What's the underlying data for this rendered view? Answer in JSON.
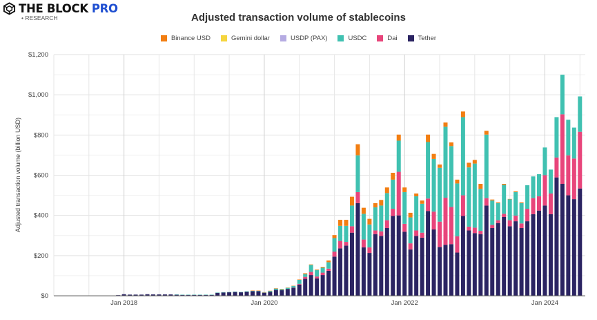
{
  "logo": {
    "main": "THE BLOCK",
    "pro": "PRO",
    "sub": "• RESEARCH"
  },
  "chart_data": {
    "type": "bar",
    "stacked": true,
    "title": "Adjusted transaction volume of stablecoins",
    "xlabel": "",
    "ylabel": "Adjusted transaction volume (billion USD)",
    "ylim": [
      0,
      1200
    ],
    "yticks": [
      0,
      200,
      400,
      600,
      800,
      1000,
      1200
    ],
    "ytick_labels": [
      "$0",
      "$200",
      "$400",
      "$600",
      "$800",
      "$1,000",
      "$1,200"
    ],
    "xtick_labels": [
      {
        "label": "Jan 2018",
        "month": "2018-01"
      },
      {
        "label": "Jan 2020",
        "month": "2020-01"
      },
      {
        "label": "Jan 2022",
        "month": "2022-01"
      },
      {
        "label": "Jan 2024",
        "month": "2024-01"
      }
    ],
    "grid": true,
    "legend_position": "top",
    "first_month": "2017-02",
    "last_month": "2024-07",
    "series": [
      {
        "name": "Tether",
        "color": "#2b2462",
        "values": [
          0.5,
          0.5,
          0.5,
          0.5,
          0.5,
          0.5,
          0.5,
          1,
          1,
          1,
          3,
          8,
          6,
          6,
          6,
          8,
          7,
          7,
          7,
          7,
          6,
          5,
          5,
          5,
          5,
          5,
          5,
          15,
          17,
          18,
          20,
          18,
          21,
          23,
          23,
          15,
          20,
          30,
          28,
          34,
          40,
          56,
          85,
          103,
          87,
          103,
          124,
          195,
          236,
          250,
          314,
          461,
          241,
          213,
          307,
          298,
          337,
          397,
          400,
          319,
          231,
          298,
          289,
          422,
          330,
          243,
          254,
          257,
          215,
          397,
          325,
          312,
          307,
          449,
          337,
          362,
          392,
          346,
          371,
          337,
          371,
          406,
          424,
          449,
          406,
          589,
          557,
          500,
          481,
          534
        ]
      },
      {
        "name": "Dai",
        "color": "#e8457b",
        "values": [
          0,
          0,
          0,
          0,
          0,
          0,
          0,
          0,
          0,
          0,
          0,
          0,
          0,
          0,
          0,
          0,
          0,
          0,
          0,
          0,
          0,
          0,
          0,
          0,
          0,
          0,
          0,
          0,
          0,
          0,
          0,
          0,
          0,
          0,
          0,
          0,
          0,
          0,
          0,
          0,
          1,
          3,
          9,
          16,
          9,
          12,
          11,
          25,
          37,
          18,
          32,
          55,
          39,
          28,
          18,
          23,
          39,
          36,
          217,
          39,
          30,
          27,
          25,
          62,
          89,
          126,
          234,
          185,
          81,
          103,
          19,
          27,
          16,
          37,
          16,
          14,
          16,
          30,
          28,
          23,
          62,
          80,
          71,
          151,
          103,
          99,
          346,
          199,
          202,
          282
        ]
      },
      {
        "name": "USDC",
        "color": "#40c1b1",
        "values": [
          0,
          0,
          0,
          0,
          0,
          0,
          0,
          0,
          0,
          0,
          0,
          0,
          0,
          0,
          0,
          0,
          0,
          0,
          0,
          0,
          0.5,
          0.5,
          0.5,
          0.5,
          0.5,
          0.5,
          0.5,
          1,
          1,
          1,
          1,
          1,
          1,
          2,
          2,
          2,
          4,
          6,
          5,
          6,
          8,
          20,
          14,
          35,
          32,
          25,
          32,
          67,
          75,
          80,
          103,
          183,
          128,
          114,
          115,
          128,
          135,
          145,
          155,
          158,
          129,
          170,
          144,
          281,
          262,
          268,
          353,
          303,
          263,
          389,
          295,
          319,
          209,
          316,
          121,
          85,
          144,
          105,
          117,
          101,
          117,
          108,
          110,
          138,
          119,
          201,
          197,
          177,
          154,
          176
        ]
      },
      {
        "name": "USDP (PAX)",
        "color": "#b5abe2",
        "values": [
          0,
          0,
          0,
          0,
          0,
          0,
          0,
          0,
          0,
          0,
          0,
          0,
          0,
          0,
          0,
          0,
          0,
          0,
          0,
          0,
          0,
          0,
          0,
          0,
          0,
          0,
          0,
          0,
          0,
          0,
          0,
          0,
          0,
          0,
          0,
          0,
          0,
          0,
          0,
          0,
          0,
          0,
          0,
          0,
          0,
          0,
          0,
          0,
          0,
          0,
          0,
          0,
          0,
          0,
          0,
          0,
          0,
          0,
          0,
          0,
          0,
          0,
          0,
          0,
          0,
          0,
          0,
          0,
          0,
          0,
          0,
          0,
          0,
          0,
          0,
          0,
          0,
          0,
          0,
          0,
          0,
          0,
          0,
          0,
          0,
          0,
          0,
          0,
          0,
          0
        ]
      },
      {
        "name": "Gemini dollar",
        "color": "#f5d53f",
        "values": [
          0,
          0,
          0,
          0,
          0,
          0,
          0,
          0,
          0,
          0,
          0,
          0,
          0,
          0,
          0,
          0,
          0,
          0,
          0,
          0,
          0,
          0,
          0,
          0,
          0,
          0,
          0,
          0,
          0,
          0,
          0,
          0,
          0,
          0,
          0,
          0,
          0,
          0,
          0,
          0,
          0,
          0,
          0,
          0,
          0,
          0,
          0,
          0,
          0,
          0,
          0,
          0,
          0,
          0,
          0,
          0,
          0,
          0,
          0,
          0,
          0,
          0,
          0,
          0,
          0,
          0,
          0,
          0,
          0,
          0,
          0,
          0,
          0,
          0,
          0,
          0,
          0,
          0,
          0,
          0,
          0,
          0,
          0,
          0,
          0,
          0,
          0,
          0,
          0,
          0
        ]
      },
      {
        "name": "Binance USD",
        "color": "#f27e12",
        "values": [
          0,
          0,
          0,
          0,
          0,
          0,
          0,
          0,
          0,
          0,
          0,
          0,
          0,
          0,
          0,
          0,
          0,
          0,
          0,
          0,
          0,
          0,
          0,
          0,
          0,
          0,
          0,
          0,
          0,
          0,
          0,
          0,
          0,
          1,
          1,
          1,
          1,
          1,
          1,
          1,
          1,
          2,
          4,
          2,
          3,
          4,
          9,
          15,
          30,
          30,
          44,
          55,
          30,
          28,
          21,
          28,
          28,
          34,
          30,
          23,
          23,
          14,
          16,
          37,
          25,
          16,
          21,
          18,
          19,
          28,
          23,
          18,
          25,
          19,
          5,
          4,
          5,
          1,
          4,
          4,
          0,
          0,
          0,
          0,
          0,
          0,
          0,
          0,
          0,
          0
        ]
      }
    ],
    "legend": [
      "Binance USD",
      "Gemini dollar",
      "USDP (PAX)",
      "USDC",
      "Dai",
      "Tether"
    ]
  }
}
